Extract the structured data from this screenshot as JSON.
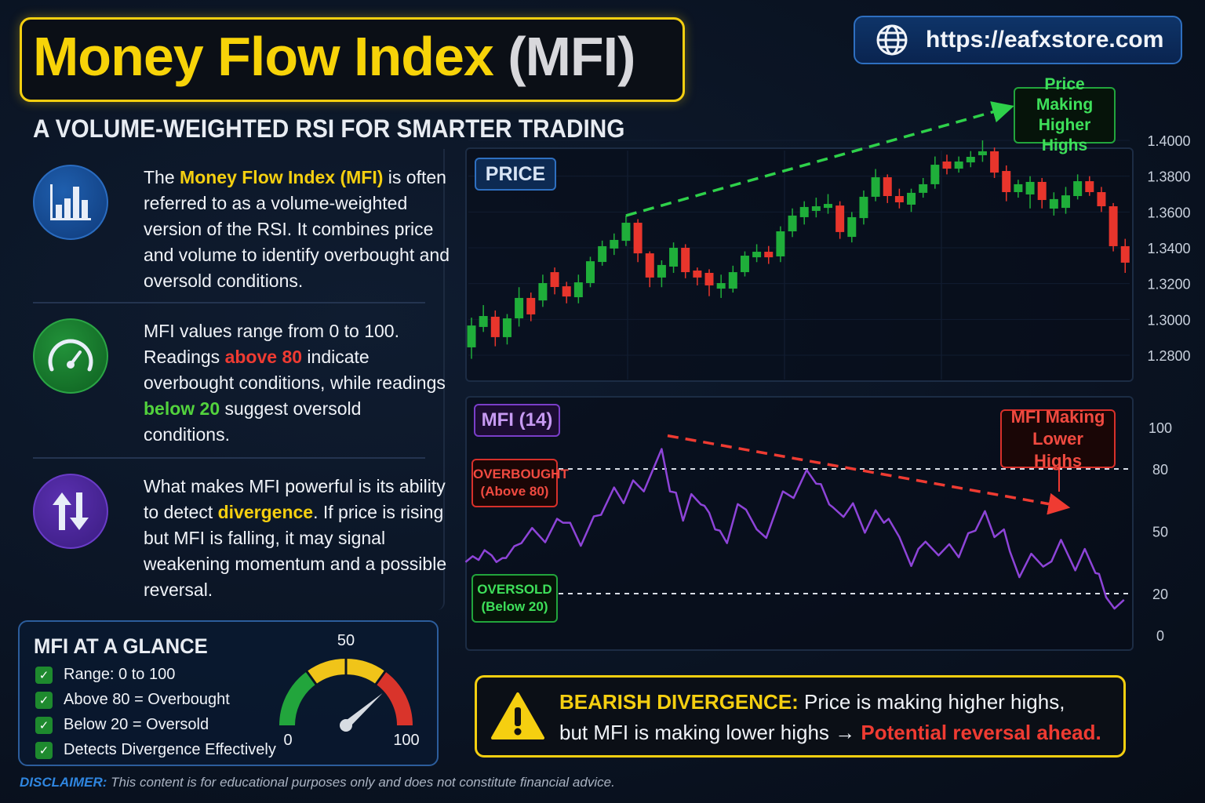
{
  "header": {
    "title_main": "Money Flow Index",
    "title_abbr": "(MFI)",
    "subtitle": "A VOLUME-WEIGHTED RSI FOR SMARTER TRADING",
    "url": "https://eafxstore.com"
  },
  "sections": [
    {
      "icon": "bar-chart-icon",
      "p": [
        "The ",
        "Money Flow Index (MFI)",
        " is often referred to as a volume-weighted version of the RSI. It combines price and volume to identify overbought and oversold conditions."
      ]
    },
    {
      "icon": "gauge-icon",
      "p": [
        "MFI values range from 0 to 100. Readings ",
        "above 80",
        " indicate overbought conditions, while readings ",
        "below 20",
        " suggest oversold conditions."
      ]
    },
    {
      "icon": "up-down-arrows-icon",
      "p": [
        "What makes MFI powerful is its ability to detect ",
        "divergence",
        ". If price is rising but MFI is falling, it may signal weakening momentum and a possible reversal."
      ]
    }
  ],
  "glance": {
    "title": "MFI AT A GLANCE",
    "items": [
      "Range: 0 to 100",
      "Above 80 = Overbought",
      "Below 20 = Oversold",
      "Detects Divergence Effectively"
    ],
    "gauge": {
      "min_label": "0",
      "mid_label": "50",
      "max_label": "100",
      "value": 77
    }
  },
  "disclaimer": {
    "label": "DISCLAIMER:",
    "text": " This content is for educational purposes only and does not constitute financial advice."
  },
  "banner": {
    "label": "BEARISH DIVERGENCE:",
    "line1": " Price is making higher highs,",
    "line2": "but MFI is making lower highs → ",
    "emphasis": "Potential reversal ahead."
  },
  "colors": {
    "up": "#1fae3a",
    "down": "#e8352c",
    "mfi": "#8e44d8",
    "accent": "#f5cf10"
  },
  "chart_data": [
    {
      "type": "candlestick",
      "title": "PRICE",
      "annotation": "Price Making Higher Highs",
      "yticks": [
        "1.4000",
        "1.3800",
        "1.3600",
        "1.3400",
        "1.3200",
        "1.3000",
        "1.2800"
      ],
      "ylim": [
        1.28,
        1.4
      ],
      "ohlc": [
        [
          1.2844,
          1.2966,
          1.301,
          1.278
        ],
        [
          1.2958,
          1.3019,
          1.308,
          1.293
        ],
        [
          1.3015,
          1.2901,
          1.305,
          1.285
        ],
        [
          1.2901,
          1.3006,
          1.303,
          1.286
        ],
        [
          1.3006,
          1.312,
          1.318,
          1.296
        ],
        [
          1.312,
          1.3028,
          1.315,
          1.299
        ],
        [
          1.3106,
          1.3203,
          1.325,
          1.307
        ],
        [
          1.3264,
          1.3181,
          1.329,
          1.314
        ],
        [
          1.3185,
          1.3128,
          1.321,
          1.309
        ],
        [
          1.3124,
          1.3207,
          1.325,
          1.309
        ],
        [
          1.3203,
          1.3325,
          1.335,
          1.318
        ],
        [
          1.3321,
          1.3409,
          1.344,
          1.33
        ],
        [
          1.3396,
          1.3444,
          1.348,
          1.336
        ],
        [
          1.3439,
          1.354,
          1.358,
          1.341
        ],
        [
          1.354,
          1.3369,
          1.356,
          1.332
        ],
        [
          1.3369,
          1.3234,
          1.338,
          1.318
        ],
        [
          1.3234,
          1.3304,
          1.333,
          1.318
        ],
        [
          1.3295,
          1.34,
          1.343,
          1.326
        ],
        [
          1.34,
          1.3264,
          1.342,
          1.323
        ],
        [
          1.3273,
          1.3234,
          1.329,
          1.319
        ],
        [
          1.326,
          1.319,
          1.328,
          1.313
        ],
        [
          1.3172,
          1.3203,
          1.325,
          1.312
        ],
        [
          1.3172,
          1.3264,
          1.33,
          1.315
        ],
        [
          1.3264,
          1.3356,
          1.338,
          1.324
        ],
        [
          1.3347,
          1.3378,
          1.342,
          1.332
        ],
        [
          1.3378,
          1.3347,
          1.341,
          1.331
        ],
        [
          1.3352,
          1.3492,
          1.352,
          1.332
        ],
        [
          1.3492,
          1.358,
          1.362,
          1.346
        ],
        [
          1.3571,
          1.3628,
          1.366,
          1.353
        ],
        [
          1.3606,
          1.3632,
          1.368,
          1.357
        ],
        [
          1.3623,
          1.3645,
          1.37,
          1.359
        ],
        [
          1.3636,
          1.3488,
          1.366,
          1.345
        ],
        [
          1.3461,
          1.3571,
          1.36,
          1.343
        ],
        [
          1.3566,
          1.3685,
          1.372,
          1.353
        ],
        [
          1.3685,
          1.3794,
          1.384,
          1.366
        ],
        [
          1.3794,
          1.3689,
          1.381,
          1.365
        ],
        [
          1.3689,
          1.3654,
          1.373,
          1.362
        ],
        [
          1.3641,
          1.3707,
          1.373,
          1.36
        ],
        [
          1.3707,
          1.3755,
          1.379,
          1.368
        ],
        [
          1.3755,
          1.3864,
          1.391,
          1.373
        ],
        [
          1.3882,
          1.3842,
          1.392,
          1.381
        ],
        [
          1.3842,
          1.3882,
          1.391,
          1.382
        ],
        [
          1.3877,
          1.3908,
          1.394,
          1.385
        ],
        [
          1.3917,
          1.3939,
          1.4,
          1.388
        ],
        [
          1.3939,
          1.382,
          1.396,
          1.379
        ],
        [
          1.3829,
          1.3711,
          1.386,
          1.366
        ],
        [
          1.3711,
          1.3755,
          1.378,
          1.368
        ],
        [
          1.3698,
          1.3768,
          1.38,
          1.362
        ],
        [
          1.3768,
          1.3667,
          1.379,
          1.362
        ],
        [
          1.3619,
          1.3672,
          1.371,
          1.358
        ],
        [
          1.3623,
          1.3693,
          1.374,
          1.359
        ],
        [
          1.3689,
          1.3772,
          1.381,
          1.367
        ],
        [
          1.3772,
          1.3711,
          1.38,
          1.369
        ],
        [
          1.3711,
          1.3632,
          1.374,
          1.36
        ],
        [
          1.3632,
          1.3409,
          1.365,
          1.338
        ],
        [
          1.3409,
          1.3317,
          1.345,
          1.326
        ]
      ],
      "trendline": {
        "from": [
          13,
          1.358
        ],
        "to": [
          45,
          1.418
        ]
      }
    },
    {
      "type": "line",
      "title": "MFI (14)",
      "annotation": "MFI Making Lower Highs",
      "yticks": [
        "100",
        "80",
        "50",
        "20",
        "0"
      ],
      "ytick_values": [
        100,
        80,
        50,
        20,
        0
      ],
      "ylim": [
        0,
        100
      ],
      "levels": [
        {
          "value": 80,
          "label1": "OVERBOUGHT",
          "label2": "(Above 80)"
        },
        {
          "value": 20,
          "label1": "OVERSOLD",
          "label2": "(Below 20)"
        }
      ],
      "points": [
        [
          -0.5,
          35.2
        ],
        [
          0.1,
          38
        ],
        [
          0.6,
          36.2
        ],
        [
          1.1,
          40.9
        ],
        [
          1.7,
          38.4
        ],
        [
          2.1,
          35.2
        ],
        [
          2.6,
          37.1
        ],
        [
          2.9,
          37.1
        ],
        [
          3.6,
          42.8
        ],
        [
          4.2,
          44.3
        ],
        [
          5.1,
          51.6
        ],
        [
          6.2,
          44.7
        ],
        [
          7.2,
          56
        ],
        [
          7.7,
          54.1
        ],
        [
          8.3,
          54.1
        ],
        [
          9.2,
          43
        ],
        [
          10.3,
          57.2
        ],
        [
          10.9,
          57.9
        ],
        [
          12,
          71.1
        ],
        [
          12.8,
          63.5
        ],
        [
          13.6,
          74.5
        ],
        [
          14.5,
          69.2
        ],
        [
          16,
          89.6
        ],
        [
          16.7,
          69.2
        ],
        [
          17.2,
          68.6
        ],
        [
          17.8,
          55.1
        ],
        [
          18.5,
          67.9
        ],
        [
          19.3,
          62.9
        ],
        [
          19.6,
          62.3
        ],
        [
          20,
          58.9
        ],
        [
          20.5,
          50.9
        ],
        [
          20.9,
          50.3
        ],
        [
          21.5,
          44.3
        ],
        [
          22.4,
          63.1
        ],
        [
          23.1,
          60.4
        ],
        [
          24,
          50.9
        ],
        [
          24.8,
          46.8
        ],
        [
          26.2,
          69.2
        ],
        [
          27.1,
          66
        ],
        [
          28.2,
          79.5
        ],
        [
          29,
          72.9
        ],
        [
          29.4,
          72.7
        ],
        [
          30.1,
          62.9
        ],
        [
          30.4,
          61.6
        ],
        [
          31.3,
          56.9
        ],
        [
          32.1,
          63.5
        ],
        [
          33.1,
          49.3
        ],
        [
          34,
          60.1
        ],
        [
          34.7,
          54.1
        ],
        [
          35.1,
          56
        ],
        [
          36,
          47.2
        ],
        [
          37,
          33.3
        ],
        [
          37.6,
          41.5
        ],
        [
          38.2,
          45
        ],
        [
          39.3,
          38.4
        ],
        [
          40.2,
          43.8
        ],
        [
          41,
          37.5
        ],
        [
          41.8,
          49.1
        ],
        [
          42.4,
          50.3
        ],
        [
          43.2,
          59.7
        ],
        [
          44,
          47.2
        ],
        [
          44.8,
          50.9
        ],
        [
          45.3,
          40.3
        ],
        [
          46.1,
          27.9
        ],
        [
          47.1,
          39.2
        ],
        [
          48.1,
          33
        ],
        [
          48.8,
          35.5
        ],
        [
          49.6,
          45.9
        ],
        [
          50.8,
          31.2
        ],
        [
          51.6,
          41.5
        ],
        [
          52.5,
          29.9
        ],
        [
          52.8,
          29.5
        ],
        [
          53.4,
          18.2
        ],
        [
          54.1,
          12.8
        ],
        [
          54.9,
          17
        ]
      ],
      "trendline": {
        "from": [
          16.5,
          96
        ],
        "to": [
          49.7,
          62
        ]
      }
    }
  ]
}
